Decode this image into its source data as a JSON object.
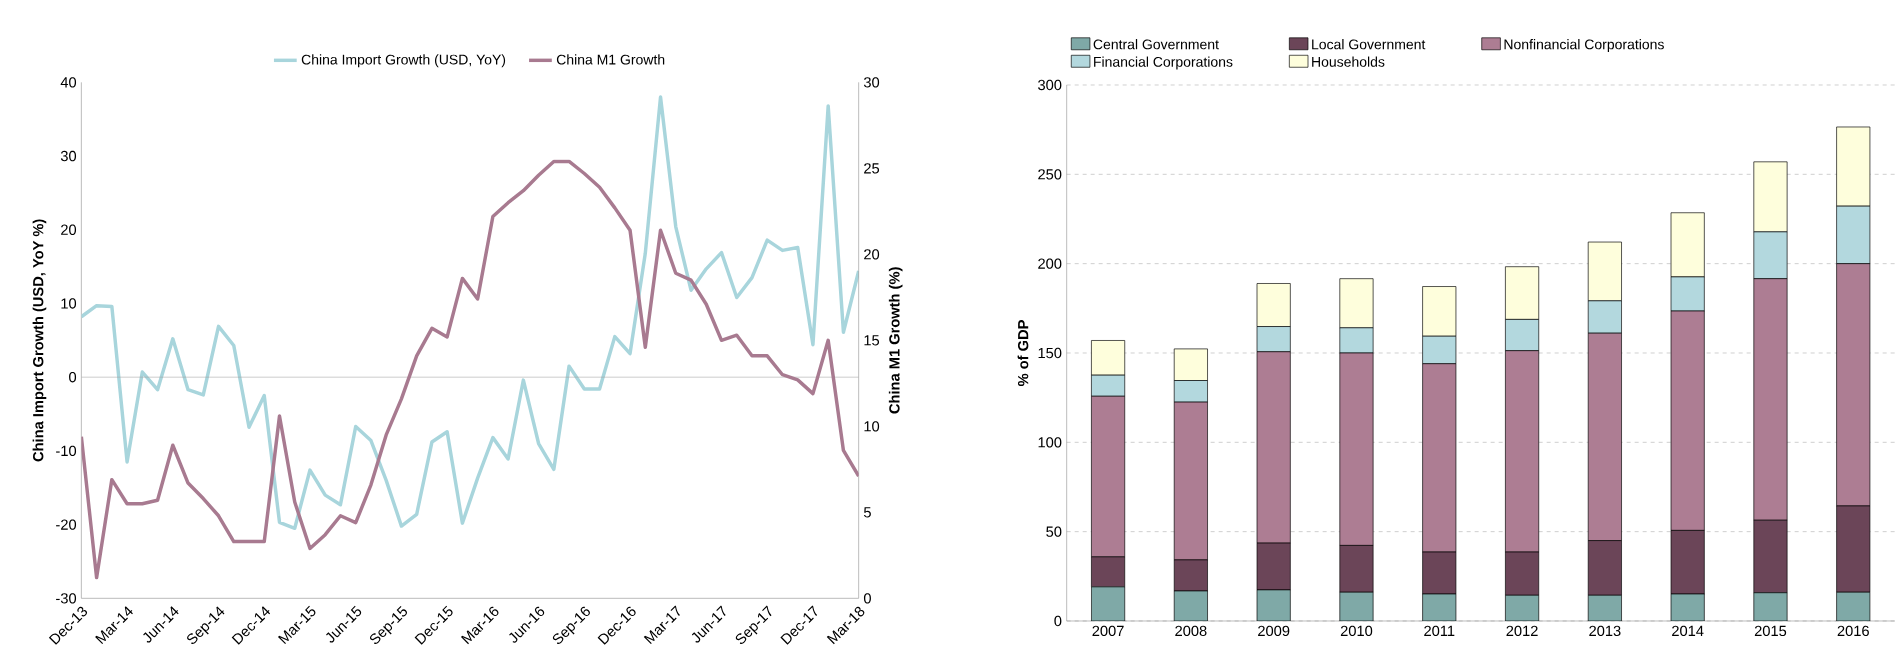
{
  "chart_data": [
    {
      "type": "line",
      "ylabel": "China Import Growth (USD, YoY %)",
      "y2label": "China M1 Growth (%)",
      "categories": [
        "Dec-13",
        null,
        null,
        "Mar-14",
        null,
        null,
        "Jun-14",
        null,
        null,
        "Sep-14",
        null,
        null,
        "Dec-14",
        null,
        null,
        "Mar-15",
        null,
        null,
        "Jun-15",
        null,
        null,
        "Sep-15",
        null,
        null,
        "Dec-15",
        null,
        null,
        "Mar-16",
        null,
        null,
        "Jun-16",
        null,
        null,
        "Sep-16",
        null,
        null,
        "Dec-16",
        null,
        null,
        "Mar-17",
        null,
        null,
        "Jun-17",
        null,
        null,
        "Sep-17",
        null,
        null,
        "Dec-17",
        null,
        null,
        "Mar-18"
      ],
      "series": [
        {
          "name": "China Import Growth (USD, YoY)",
          "color": "#a8d5dc",
          "axis": "y",
          "values": [
            8.2,
            9.7,
            9.6,
            -11.5,
            0.7,
            -1.7,
            5.2,
            -1.7,
            -2.4,
            6.9,
            4.3,
            -6.8,
            -2.5,
            -19.7,
            -20.5,
            -12.6,
            -16.0,
            -17.3,
            -6.7,
            -8.6,
            -14.0,
            -20.2,
            -18.6,
            -8.8,
            -7.4,
            -19.8,
            -13.7,
            -8.2,
            -11.1,
            -0.4,
            -9.0,
            -12.5,
            1.5,
            -1.6,
            -1.6,
            5.5,
            3.2,
            16.8,
            38.0,
            20.4,
            11.8,
            14.7,
            16.9,
            10.8,
            13.5,
            18.6,
            17.2,
            17.6,
            4.4,
            36.8,
            6.1,
            14.4
          ]
        },
        {
          "name": "China M1 Growth",
          "color": "#a87a90",
          "axis": "y2",
          "values": [
            9.4,
            1.2,
            6.9,
            5.5,
            5.5,
            5.7,
            8.9,
            6.7,
            5.8,
            4.8,
            3.3,
            3.3,
            3.3,
            10.6,
            5.6,
            2.9,
            3.7,
            4.8,
            4.4,
            6.6,
            9.5,
            11.6,
            14.1,
            15.7,
            15.2,
            18.6,
            17.4,
            22.2,
            23.0,
            23.7,
            24.6,
            25.4,
            25.4,
            24.7,
            23.9,
            22.7,
            21.4,
            14.6,
            21.4,
            18.9,
            18.5,
            17.1,
            15.0,
            15.3,
            14.1,
            14.1,
            13.0,
            12.7,
            11.9,
            15.0,
            8.6,
            7.1
          ]
        }
      ],
      "ylim": [
        -30,
        40
      ],
      "yticks": [
        -30,
        -20,
        -10,
        0,
        10,
        20,
        30,
        40
      ],
      "y2lim": [
        0,
        30
      ],
      "y2ticks": [
        0,
        5,
        10,
        15,
        20,
        25,
        30
      ],
      "ref_lines": [
        {
          "axis": "y",
          "value": 0,
          "color": "#a0a0a0"
        }
      ],
      "legend": "top",
      "marker": "none",
      "line_style": "solid"
    },
    {
      "type": "bar",
      "stacked": true,
      "ylabel": "% of GDP",
      "categories": [
        "2007",
        "2008",
        "2009",
        "2010",
        "2011",
        "2012",
        "2013",
        "2014",
        "2015",
        "2016"
      ],
      "series": [
        {
          "name": "Central Government",
          "color": "#7fa9a7",
          "values": [
            19.1,
            16.8,
            17.4,
            16.1,
            15.1,
            14.4,
            14.4,
            15.1,
            15.8,
            16.1
          ]
        },
        {
          "name": "Local Government",
          "color": "#6b4558",
          "values": [
            16.8,
            17.4,
            26.2,
            26.2,
            23.5,
            24.2,
            30.6,
            35.6,
            40.6,
            48.3
          ]
        },
        {
          "name": "Nonfinancial Corporations",
          "color": "#ad7d93",
          "values": [
            89.9,
            88.3,
            107.1,
            107.7,
            105.4,
            112.7,
            116.1,
            122.8,
            135.2,
            135.6
          ]
        },
        {
          "name": "Financial Corporations",
          "color": "#b3d8de",
          "values": [
            11.8,
            12.1,
            14.1,
            14.1,
            15.4,
            17.5,
            18.1,
            19.1,
            26.2,
            32.2
          ]
        },
        {
          "name": "Households",
          "color": "#fefedc",
          "values": [
            19.4,
            17.7,
            24.1,
            27.5,
            27.8,
            29.5,
            32.9,
            35.9,
            39.2,
            44.3
          ]
        }
      ],
      "ylim": [
        0,
        300
      ],
      "yticks": [
        0,
        50,
        100,
        150,
        200,
        250,
        300
      ],
      "legend": "top",
      "grid": "y"
    }
  ]
}
